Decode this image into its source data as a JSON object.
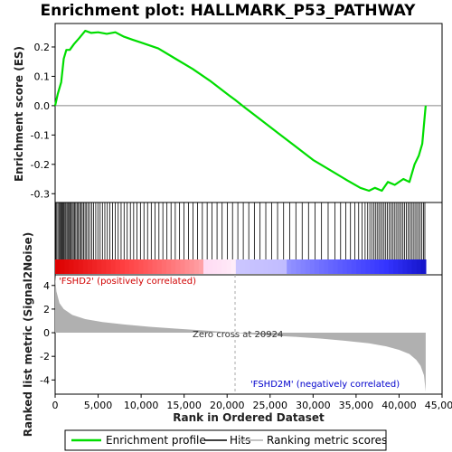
{
  "chart_data": {
    "type": "line",
    "title": "Enrichment plot: HALLMARK_P53_PATHWAY",
    "top_panel": {
      "ylabel": "Enrichment score (ES)",
      "ylim": [
        -0.33,
        0.28
      ],
      "yticks": [
        "0.2",
        "0.1",
        "0.0",
        "-0.1",
        "-0.2",
        "-0.3"
      ],
      "yticks_values": [
        0.2,
        0.1,
        0.0,
        -0.1,
        -0.2,
        -0.3
      ],
      "series": [
        {
          "name": "Enrichment profile",
          "color": "#00dd00",
          "x": [
            0,
            300,
            700,
            1000,
            1300,
            1700,
            2200,
            2800,
            3500,
            4200,
            5000,
            6000,
            7000,
            8000,
            9000,
            10000,
            11000,
            12000,
            14000,
            16000,
            18000,
            20000,
            20924,
            22000,
            24000,
            26000,
            28000,
            30000,
            32000,
            34000,
            35500,
            36500,
            37200,
            38000,
            38700,
            39500,
            40500,
            41200,
            41800,
            42300,
            42700,
            43000,
            43100
          ],
          "y": [
            0.0,
            0.04,
            0.08,
            0.16,
            0.19,
            0.19,
            0.21,
            0.23,
            0.255,
            0.248,
            0.25,
            0.245,
            0.25,
            0.235,
            0.225,
            0.215,
            0.205,
            0.195,
            0.16,
            0.125,
            0.085,
            0.04,
            0.02,
            -0.005,
            -0.05,
            -0.095,
            -0.14,
            -0.185,
            -0.22,
            -0.255,
            -0.28,
            -0.29,
            -0.28,
            -0.29,
            -0.26,
            -0.27,
            -0.25,
            -0.26,
            -0.2,
            -0.17,
            -0.13,
            -0.03,
            0.0
          ]
        }
      ]
    },
    "hits": {
      "name": "Hits",
      "color": "#000000",
      "positions": [
        60,
        180,
        320,
        450,
        560,
        680,
        790,
        900,
        1010,
        1130,
        1240,
        1370,
        1490,
        1600,
        1720,
        1860,
        1990,
        2120,
        2260,
        2400,
        2550,
        2700,
        2850,
        3000,
        3150,
        3310,
        3480,
        3650,
        3830,
        4030,
        4250,
        4480,
        4720,
        4970,
        5230,
        5500,
        5780,
        6070,
        6370,
        6680,
        7000,
        7330,
        7670,
        8020,
        8380,
        8750,
        9130,
        9520,
        9920,
        10330,
        10750,
        11180,
        11620,
        12070,
        12530,
        13000,
        13480,
        13970,
        14470,
        14980,
        15500,
        16030,
        16570,
        17120,
        17680,
        18250,
        18830,
        19420,
        20020,
        20630,
        21250,
        21880,
        22520,
        23170,
        23830,
        24500,
        25180,
        25870,
        26570,
        27280,
        28000,
        28730,
        29470,
        30220,
        30980,
        31750,
        32530,
        33200,
        33800,
        34350,
        34850,
        35300,
        35700,
        36050,
        36350,
        36600,
        36830,
        37050,
        37250,
        37450,
        37650,
        37850,
        38050,
        38250,
        38450,
        38650,
        38850,
        39050,
        39250,
        39450,
        39650,
        39850,
        40050,
        40250,
        40450,
        40650,
        40850,
        41050,
        41250,
        41450,
        41650,
        41850,
        42050,
        42250,
        42450,
        42650,
        42850,
        43000
      ]
    },
    "ranking": {
      "name": "Ranking metric scores",
      "color": "#b0b0b0",
      "ylabel": "Ranked list metric (Signal2Noise)",
      "ylim": [
        -5.2,
        4.9
      ],
      "yticks": [
        "4",
        "2",
        "0",
        "-2",
        "-4"
      ],
      "yticks_values": [
        4,
        2,
        0,
        -2,
        -4
      ],
      "x": [
        0,
        150,
        500,
        1000,
        2000,
        3500,
        5500,
        8000,
        11000,
        14000,
        17000,
        20924,
        24000,
        28000,
        31000,
        34000,
        36500,
        38500,
        40000,
        41200,
        42000,
        42500,
        42900,
        43100
      ],
      "y": [
        4.8,
        3.5,
        2.5,
        2.0,
        1.5,
        1.15,
        0.9,
        0.7,
        0.5,
        0.35,
        0.2,
        0.0,
        -0.2,
        -0.35,
        -0.5,
        -0.7,
        -0.9,
        -1.15,
        -1.45,
        -1.8,
        -2.3,
        -2.8,
        -3.6,
        -5.0
      ],
      "zero_cross": 20924
    },
    "xaxis": {
      "label": "Rank in Ordered Dataset",
      "xlim": [
        0,
        45000
      ],
      "ticks": [
        "0",
        "5,000",
        "10,000",
        "15,000",
        "20,000",
        "25,000",
        "30,000",
        "35,000",
        "40,000",
        "45,000"
      ],
      "ticks_values": [
        0,
        5000,
        10000,
        15000,
        20000,
        25000,
        30000,
        35000,
        40000,
        45000
      ],
      "dataset_size": 43100
    },
    "annotations": {
      "positive": "'FSHD2' (positively correlated)",
      "negative": "'FSHD2M' (negatively correlated)",
      "zero_cross": "Zero cross at 20924"
    },
    "colors": {
      "positive_label": "#d00000",
      "negative_label": "#0000cc",
      "bar_pos": "#ff0000",
      "bar_neg": "#0000ff"
    },
    "legend": {
      "placement": "bottom",
      "items": [
        {
          "label": "Enrichment profile",
          "color": "#00dd00"
        },
        {
          "label": "Hits",
          "color": "#000000"
        },
        {
          "label": "Ranking metric scores",
          "color": "#b0b0b0"
        }
      ]
    }
  }
}
